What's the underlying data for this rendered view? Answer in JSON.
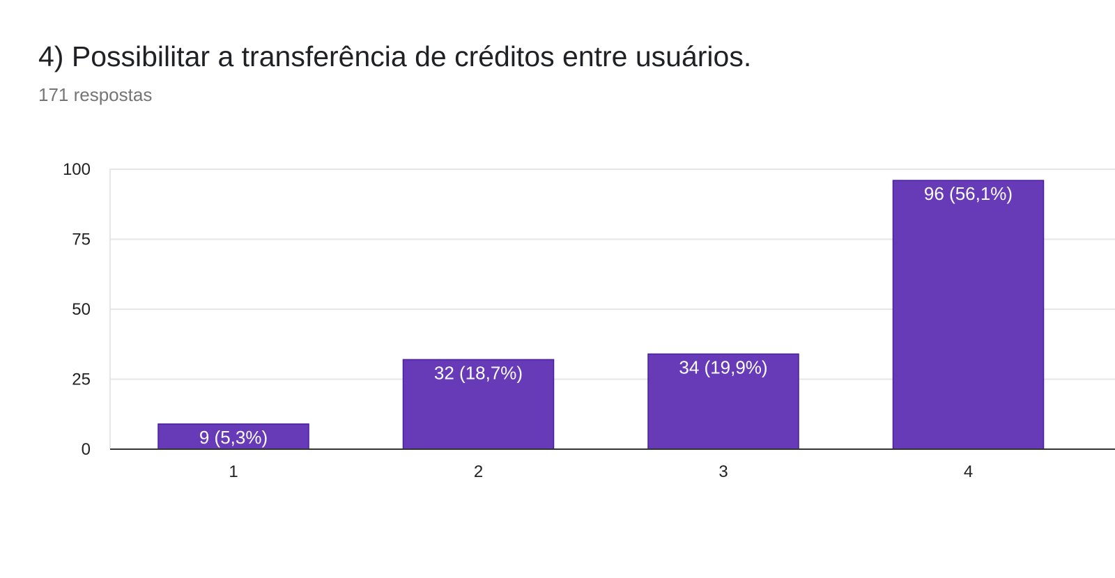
{
  "header": {
    "title": "4) Possibilitar a transferência de créditos entre usuários.",
    "subtitle": "171 respostas"
  },
  "chart_data": {
    "type": "bar",
    "categories": [
      "1",
      "2",
      "3",
      "4"
    ],
    "values": [
      9,
      32,
      34,
      96
    ],
    "data_labels": [
      "9 (5,3%)",
      "32 (18,7%)",
      "34 (19,9%)",
      "96 (56,1%)"
    ],
    "ylim": [
      0,
      100
    ],
    "yticks": [
      0,
      25,
      50,
      75,
      100
    ],
    "grid": true,
    "bar_color": "#673ab7",
    "bar_border_color": "#4a1f9e",
    "grid_color": "#e6e6e6",
    "axis_color": "#333333"
  }
}
